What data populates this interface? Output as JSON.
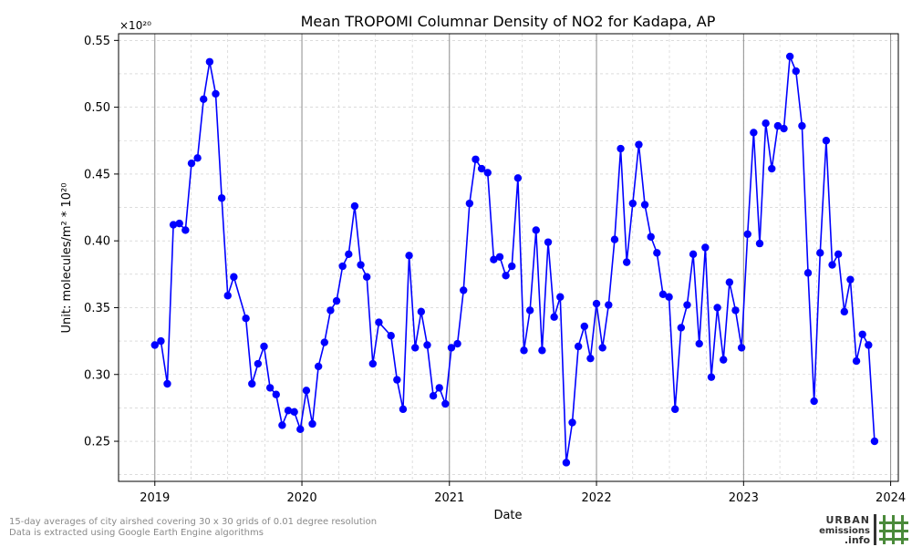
{
  "chart_data": {
    "type": "line",
    "title": "Mean TROPOMI Columnar Density of NO2 for Kadapa, AP",
    "xlabel": "Date",
    "ylabel": "Unit: molecules/m² * 10²⁰",
    "y_scale_note": "×10²⁰",
    "xlim": [
      "2018-10-03",
      "2024-01-20"
    ],
    "ylim": [
      0.22,
      0.555
    ],
    "x_ticks": [
      "2019",
      "2020",
      "2021",
      "2022",
      "2023",
      "2024"
    ],
    "y_ticks": [
      "0.25",
      "0.30",
      "0.35",
      "0.40",
      "0.45",
      "0.50",
      "0.55"
    ],
    "grid": true,
    "series": [
      {
        "color": "#0000ff",
        "marker": "circle",
        "points": [
          [
            "2019-01-01",
            0.322
          ],
          [
            "2019-01-16",
            0.325
          ],
          [
            "2019-02-01",
            0.293
          ],
          [
            "2019-02-16",
            0.412
          ],
          [
            "2019-03-03",
            0.413
          ],
          [
            "2019-03-18",
            0.408
          ],
          [
            "2019-04-02",
            0.458
          ],
          [
            "2019-04-17",
            0.462
          ],
          [
            "2019-05-02",
            0.506
          ],
          [
            "2019-05-17",
            0.534
          ],
          [
            "2019-06-01",
            0.51
          ],
          [
            "2019-06-16",
            0.432
          ],
          [
            "2019-07-01",
            0.359
          ],
          [
            "2019-07-16",
            0.373
          ],
          [
            "2019-08-15",
            0.342
          ],
          [
            "2019-08-30",
            0.293
          ],
          [
            "2019-09-14",
            0.308
          ],
          [
            "2019-09-29",
            0.321
          ],
          [
            "2019-10-14",
            0.29
          ],
          [
            "2019-10-29",
            0.285
          ],
          [
            "2019-11-13",
            0.262
          ],
          [
            "2019-11-28",
            0.273
          ],
          [
            "2019-12-13",
            0.272
          ],
          [
            "2019-12-28",
            0.259
          ],
          [
            "2020-01-12",
            0.288
          ],
          [
            "2020-01-27",
            0.263
          ],
          [
            "2020-02-11",
            0.306
          ],
          [
            "2020-02-26",
            0.324
          ],
          [
            "2020-03-12",
            0.348
          ],
          [
            "2020-03-27",
            0.355
          ],
          [
            "2020-04-11",
            0.381
          ],
          [
            "2020-04-26",
            0.39
          ],
          [
            "2020-05-11",
            0.426
          ],
          [
            "2020-05-26",
            0.382
          ],
          [
            "2020-06-10",
            0.373
          ],
          [
            "2020-06-25",
            0.308
          ],
          [
            "2020-07-10",
            0.339
          ],
          [
            "2020-08-09",
            0.329
          ],
          [
            "2020-08-24",
            0.296
          ],
          [
            "2020-09-08",
            0.274
          ],
          [
            "2020-09-23",
            0.389
          ],
          [
            "2020-10-08",
            0.32
          ],
          [
            "2020-10-23",
            0.347
          ],
          [
            "2020-11-07",
            0.322
          ],
          [
            "2020-11-22",
            0.284
          ],
          [
            "2020-12-07",
            0.29
          ],
          [
            "2020-12-22",
            0.278
          ],
          [
            "2021-01-06",
            0.32
          ],
          [
            "2021-01-21",
            0.323
          ],
          [
            "2021-02-05",
            0.363
          ],
          [
            "2021-02-20",
            0.428
          ],
          [
            "2021-03-07",
            0.461
          ],
          [
            "2021-03-22",
            0.454
          ],
          [
            "2021-04-06",
            0.451
          ],
          [
            "2021-04-21",
            0.386
          ],
          [
            "2021-05-06",
            0.388
          ],
          [
            "2021-05-21",
            0.374
          ],
          [
            "2021-06-05",
            0.381
          ],
          [
            "2021-06-20",
            0.447
          ],
          [
            "2021-07-05",
            0.318
          ],
          [
            "2021-07-20",
            0.348
          ],
          [
            "2021-08-04",
            0.408
          ],
          [
            "2021-08-19",
            0.318
          ],
          [
            "2021-09-03",
            0.399
          ],
          [
            "2021-09-18",
            0.343
          ],
          [
            "2021-10-03",
            0.358
          ],
          [
            "2021-10-18",
            0.234
          ],
          [
            "2021-11-02",
            0.264
          ],
          [
            "2021-11-17",
            0.321
          ],
          [
            "2021-12-02",
            0.336
          ],
          [
            "2021-12-17",
            0.312
          ],
          [
            "2022-01-01",
            0.353
          ],
          [
            "2022-01-16",
            0.32
          ],
          [
            "2022-01-31",
            0.352
          ],
          [
            "2022-02-15",
            0.401
          ],
          [
            "2022-03-02",
            0.469
          ],
          [
            "2022-03-17",
            0.384
          ],
          [
            "2022-04-01",
            0.428
          ],
          [
            "2022-04-16",
            0.472
          ],
          [
            "2022-05-01",
            0.427
          ],
          [
            "2022-05-16",
            0.403
          ],
          [
            "2022-05-31",
            0.391
          ],
          [
            "2022-06-15",
            0.36
          ],
          [
            "2022-06-30",
            0.358
          ],
          [
            "2022-07-15",
            0.274
          ],
          [
            "2022-07-30",
            0.335
          ],
          [
            "2022-08-14",
            0.352
          ],
          [
            "2022-08-29",
            0.39
          ],
          [
            "2022-09-13",
            0.323
          ],
          [
            "2022-09-28",
            0.395
          ],
          [
            "2022-10-13",
            0.298
          ],
          [
            "2022-10-28",
            0.35
          ],
          [
            "2022-11-12",
            0.311
          ],
          [
            "2022-11-27",
            0.369
          ],
          [
            "2022-12-12",
            0.348
          ],
          [
            "2022-12-27",
            0.32
          ],
          [
            "2023-01-11",
            0.405
          ],
          [
            "2023-01-26",
            0.481
          ],
          [
            "2023-02-10",
            0.398
          ],
          [
            "2023-02-25",
            0.488
          ],
          [
            "2023-03-12",
            0.454
          ],
          [
            "2023-03-27",
            0.486
          ],
          [
            "2023-04-11",
            0.484
          ],
          [
            "2023-04-26",
            0.538
          ],
          [
            "2023-05-11",
            0.527
          ],
          [
            "2023-05-26",
            0.486
          ],
          [
            "2023-06-10",
            0.376
          ],
          [
            "2023-06-25",
            0.28
          ],
          [
            "2023-07-10",
            0.391
          ],
          [
            "2023-07-25",
            0.475
          ],
          [
            "2023-08-09",
            0.382
          ],
          [
            "2023-08-24",
            0.39
          ],
          [
            "2023-09-08",
            0.347
          ],
          [
            "2023-09-23",
            0.371
          ],
          [
            "2023-10-08",
            0.31
          ],
          [
            "2023-10-23",
            0.33
          ],
          [
            "2023-11-07",
            0.322
          ],
          [
            "2023-11-22",
            0.25
          ]
        ]
      }
    ]
  },
  "footnote": {
    "line1": "15-day averages of city airshed covering 30 x 30 grids of 0.01 degree resolution",
    "line2": "Data is extracted using Google Earth Engine algorithms"
  },
  "logo": {
    "line1": "URBAN",
    "line2": "emissions",
    "line3": ".info",
    "text_color": "#333333",
    "accent_color": "#4a8a3a"
  }
}
